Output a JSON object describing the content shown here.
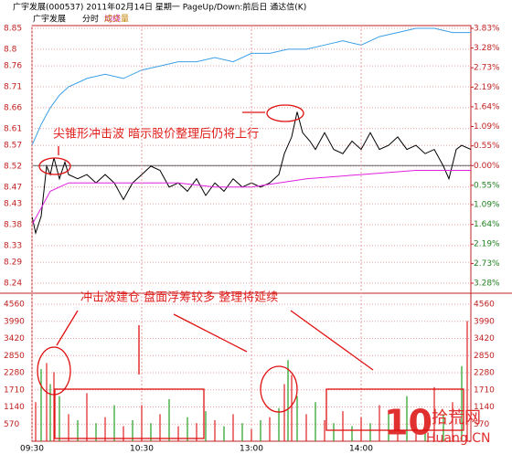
{
  "chart_data": [
    {
      "type": "line",
      "title": "广宇发展(000537) 2011年02月14日 星期一 PageUp/Down:前后日 通达信(K)",
      "subtitle": "广宇发展",
      "xlim": [
        0,
        240
      ],
      "ylim": [
        8.24,
        8.85
      ],
      "yticks": [
        8.85,
        8.8,
        8.76,
        8.71,
        8.66,
        8.61,
        8.57,
        8.52,
        8.47,
        8.43,
        8.38,
        8.33,
        8.29,
        8.24
      ],
      "y2lim": [
        -3.28,
        3.83
      ],
      "y2ticks": [
        {
          "value": 3.83,
          "label": "3.83%"
        },
        {
          "value": 3.28,
          "label": "3.28%"
        },
        {
          "value": 2.73,
          "label": "2.73%"
        },
        {
          "value": 2.19,
          "label": "2.19%"
        },
        {
          "value": 1.64,
          "label": "1.64%"
        },
        {
          "value": 1.09,
          "label": "1.09%"
        },
        {
          "value": 0.55,
          "label": "0.55%"
        },
        {
          "value": 0,
          "label": "0.00%"
        },
        {
          "value": -0.55,
          "label": "0.55%"
        },
        {
          "value": -1.09,
          "label": "1.09%"
        },
        {
          "value": -1.64,
          "label": "1.64%"
        },
        {
          "value": -2.19,
          "label": "2.19%"
        },
        {
          "value": -2.73,
          "label": "2.73%"
        },
        {
          "value": -3.28,
          "label": "3.28%"
        }
      ],
      "grid": true,
      "series": [
        {
          "name": "分时",
          "color": "#000000",
          "x": [
            0,
            2,
            5,
            8,
            10,
            12,
            15,
            18,
            20,
            25,
            30,
            35,
            40,
            45,
            50,
            55,
            60,
            65,
            70,
            75,
            80,
            85,
            90,
            95,
            100,
            105,
            110,
            115,
            120,
            125,
            130,
            135,
            138,
            142,
            145,
            148,
            152,
            155,
            160,
            165,
            170,
            175,
            180,
            185,
            190,
            195,
            200,
            205,
            210,
            215,
            220,
            225,
            228,
            232,
            235,
            240
          ],
          "values": [
            8.4,
            8.36,
            8.4,
            8.52,
            8.5,
            8.54,
            8.49,
            8.53,
            8.5,
            8.49,
            8.5,
            8.48,
            8.5,
            8.48,
            8.44,
            8.48,
            8.5,
            8.52,
            8.51,
            8.47,
            8.48,
            8.46,
            8.49,
            8.45,
            8.48,
            8.46,
            8.49,
            8.47,
            8.48,
            8.47,
            8.48,
            8.5,
            8.55,
            8.59,
            8.65,
            8.6,
            8.58,
            8.56,
            8.6,
            8.56,
            8.55,
            8.58,
            8.56,
            8.6,
            8.56,
            8.57,
            8.59,
            8.56,
            8.57,
            8.55,
            8.56,
            8.52,
            8.49,
            8.56,
            8.57,
            8.56
          ]
        },
        {
          "name": "均线",
          "color": "#e020e0",
          "x": [
            0,
            5,
            10,
            20,
            40,
            60,
            80,
            100,
            120,
            135,
            150,
            180,
            210,
            240
          ],
          "values": [
            8.38,
            8.42,
            8.46,
            8.48,
            8.48,
            8.48,
            8.48,
            8.47,
            8.47,
            8.48,
            8.49,
            8.5,
            8.51,
            8.51
          ]
        },
        {
          "color": "#3aa0e8",
          "x": [
            0,
            5,
            10,
            15,
            20,
            25,
            30,
            40,
            50,
            60,
            70,
            80,
            90,
            100,
            110,
            120,
            130,
            140,
            150,
            160,
            170,
            180,
            190,
            200,
            210,
            220,
            230,
            240
          ],
          "values": [
            8.57,
            8.62,
            8.66,
            8.69,
            8.71,
            8.72,
            8.73,
            8.74,
            8.73,
            8.75,
            8.76,
            8.77,
            8.77,
            8.78,
            8.77,
            8.79,
            8.79,
            8.8,
            8.8,
            8.81,
            8.82,
            8.81,
            8.83,
            8.84,
            8.85,
            8.85,
            8.84,
            8.84
          ]
        }
      ],
      "annotations": [
        "尖锥形冲击波 暗示股价整理后仍将上行"
      ]
    },
    {
      "type": "bar",
      "name": "成交量",
      "xlim": [
        0,
        240
      ],
      "ylim": [
        0,
        4560
      ],
      "yticks": [
        4560,
        3990,
        3420,
        2850,
        2280,
        1710,
        1140,
        570
      ],
      "xticks": [
        {
          "value": 0,
          "label": "09:30"
        },
        {
          "value": 60,
          "label": "10:30"
        },
        {
          "value": 120,
          "label": "13:00"
        },
        {
          "value": 180,
          "label": "14:00"
        }
      ],
      "x": [
        2,
        5,
        8,
        10,
        12,
        15,
        20,
        25,
        30,
        35,
        40,
        45,
        50,
        55,
        60,
        65,
        70,
        75,
        80,
        85,
        90,
        95,
        100,
        105,
        110,
        115,
        120,
        125,
        130,
        135,
        138,
        140,
        142,
        145,
        150,
        155,
        160,
        165,
        170,
        175,
        180,
        185,
        190,
        195,
        200,
        205,
        210,
        215,
        220,
        225,
        230,
        235,
        238
      ],
      "values": [
        1300,
        2400,
        2600,
        1900,
        2300,
        1500,
        900,
        700,
        1600,
        600,
        800,
        1200,
        500,
        700,
        1200,
        600,
        900,
        1400,
        500,
        800,
        600,
        1000,
        700,
        500,
        900,
        600,
        400,
        700,
        800,
        1100,
        1900,
        2700,
        2200,
        1500,
        900,
        1300,
        700,
        600,
        1000,
        500,
        800,
        600,
        1200,
        900,
        700,
        1500,
        1000,
        600,
        1800,
        900,
        1300,
        2500,
        4000
      ],
      "colors": [
        "#e02020",
        "#20a020"
      ],
      "annotations": [
        "冲击波建仓 盘面浮筹较多 整理将延续"
      ]
    }
  ],
  "watermark": [
    "10",
    "拾荒网",
    "Huang.CN"
  ]
}
